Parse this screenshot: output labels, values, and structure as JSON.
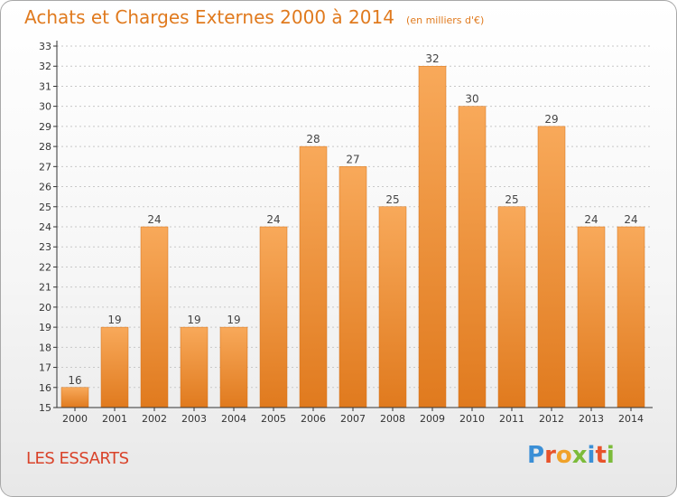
{
  "header": {
    "title": "Achats et Charges Externes 2000 à 2014",
    "subtitle": "(en milliers d'€)"
  },
  "footer": {
    "commune": "LES ESSARTS",
    "logo_text": "Proxiti",
    "logo_colors": [
      "#3b8fd6",
      "#e8532b",
      "#f0a22a",
      "#7cbb3a",
      "#3b8fd6",
      "#e8532b",
      "#7cbb3a"
    ]
  },
  "colors": {
    "bar_light": "#f8a95a",
    "bar_dark": "#e07a1e",
    "axis": "#333333",
    "grid": "#c8c8c8"
  },
  "chart_data": {
    "type": "bar",
    "title": "Achats et Charges Externes 2000 à 2014",
    "subtitle": "(en milliers d'€)",
    "categories": [
      "2000",
      "2001",
      "2002",
      "2003",
      "2004",
      "2005",
      "2006",
      "2007",
      "2008",
      "2009",
      "2010",
      "2011",
      "2012",
      "2013",
      "2014"
    ],
    "values": [
      16,
      19,
      24,
      19,
      19,
      24,
      28,
      27,
      25,
      32,
      30,
      25,
      29,
      24,
      24
    ],
    "ylim": [
      15,
      33
    ],
    "yticks": [
      15,
      16,
      17,
      18,
      19,
      20,
      21,
      22,
      23,
      24,
      25,
      26,
      27,
      28,
      29,
      30,
      31,
      32,
      33
    ],
    "grid": true,
    "data_labels": true
  }
}
